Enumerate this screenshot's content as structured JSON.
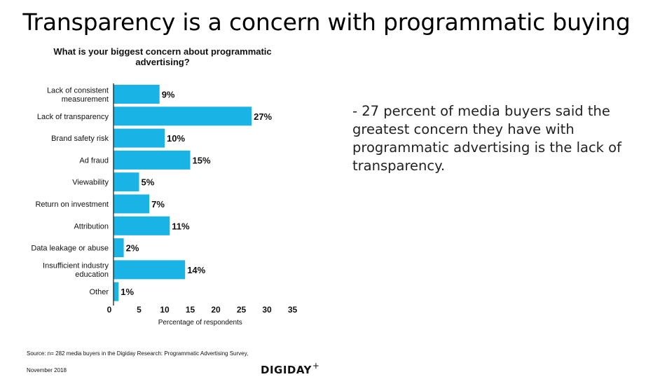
{
  "title": "Transparency is a concern with programmatic buying",
  "commentary": "- 27 percent of media buyers said the greatest concern they have with programmatic advertising is the lack of transparency.",
  "footer": {
    "source": "Source: n= 282 media buyers in the Digiday Research: Programmatic Advertising Survey,",
    "date": "November 2018",
    "brand": "DIGIDAY",
    "brand_mark": "+"
  },
  "colors": {
    "bar": "#1ab3e6",
    "text": "#111111",
    "axis": "#111111"
  },
  "chart_data": {
    "type": "bar",
    "orientation": "horizontal",
    "title": "What is your biggest concern about programmatic advertising?",
    "categories": [
      [
        "Lack of consistent",
        "measurement"
      ],
      [
        "Lack of transparency"
      ],
      [
        "Brand safety risk"
      ],
      [
        "Ad fraud"
      ],
      [
        "Viewability"
      ],
      [
        "Return on investment"
      ],
      [
        "Attribution"
      ],
      [
        "Data leakage or abuse"
      ],
      [
        "Insufficient industry",
        "education"
      ],
      [
        "Other"
      ]
    ],
    "values": [
      9,
      27,
      10,
      15,
      5,
      7,
      11,
      2,
      14,
      1
    ],
    "data_labels": [
      "9%",
      "27%",
      "10%",
      "15%",
      "5%",
      "7%",
      "11%",
      "2%",
      "14%",
      "1%"
    ],
    "xlabel": "Percentage of respondents",
    "ylabel": "",
    "xlim": [
      0,
      35
    ],
    "xticks": [
      0,
      5,
      10,
      15,
      20,
      25,
      30,
      35
    ],
    "grid": false,
    "legend": "none"
  }
}
